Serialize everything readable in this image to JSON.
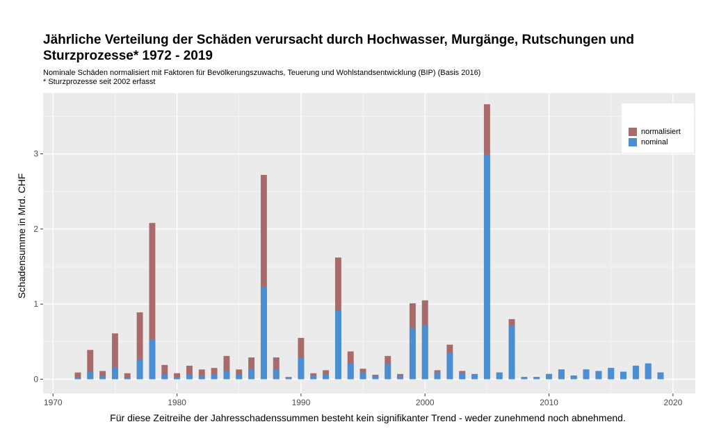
{
  "chart_data": {
    "type": "bar",
    "title": "Jährliche Verteilung der Schäden verursacht durch Hochwasser, Murgänge, Rutschungen und Sturzprozesse* 1972 - 2019",
    "subtitle_lines": [
      "Nominale Schäden normalisiert mit Faktoren für Bevölkerungszuwachs, Teuerung und Wohlstandsentwicklung (BIP) (Basis 2016)",
      "* Sturzprozesse seit 2002 erfasst"
    ],
    "xlabel": "Für diese Zeitreihe der Jahresschadenssummen besteht kein signifikanter Trend - weder zunehmend noch abnehmend.",
    "ylabel": "Schadensumme in Mrd. CHF",
    "xlim": [
      1969.2,
      2021.8
    ],
    "ylim": [
      -0.19,
      3.81
    ],
    "x_ticks": [
      1970,
      1980,
      1990,
      2000,
      2010,
      2020
    ],
    "y_ticks": [
      0,
      1,
      2,
      3
    ],
    "grid": true,
    "legend_position": "top-right",
    "x": [
      1972,
      1973,
      1974,
      1975,
      1976,
      1977,
      1978,
      1979,
      1980,
      1981,
      1982,
      1983,
      1984,
      1985,
      1986,
      1987,
      1988,
      1989,
      1990,
      1991,
      1992,
      1993,
      1994,
      1995,
      1996,
      1997,
      1998,
      1999,
      2000,
      2001,
      2002,
      2003,
      2004,
      2005,
      2006,
      2007,
      2008,
      2009,
      2010,
      2011,
      2012,
      2013,
      2014,
      2015,
      2016,
      2017,
      2018,
      2019
    ],
    "series": [
      {
        "name": "normalisiert",
        "color": "#A86B69",
        "values": [
          0.09,
          0.39,
          0.11,
          0.61,
          0.08,
          0.89,
          2.08,
          0.19,
          0.08,
          0.18,
          0.13,
          0.15,
          0.31,
          0.13,
          0.29,
          2.72,
          0.29,
          0.03,
          0.55,
          0.08,
          0.12,
          1.62,
          0.37,
          0.14,
          0.06,
          0.31,
          0.07,
          1.01,
          1.05,
          0.12,
          0.46,
          0.11,
          0.07,
          3.66,
          0.09,
          0.8,
          0.03,
          0.03,
          0.07,
          0.13,
          0.05,
          0.13,
          0.11,
          0.15,
          0.1,
          0.18,
          0.21,
          0.09
        ]
      },
      {
        "name": "nominal",
        "color": "#4A8FD4",
        "values": [
          0.02,
          0.1,
          0.04,
          0.16,
          0.02,
          0.26,
          0.53,
          0.06,
          0.03,
          0.06,
          0.05,
          0.06,
          0.11,
          0.06,
          0.13,
          1.23,
          0.13,
          0.02,
          0.29,
          0.05,
          0.06,
          0.92,
          0.21,
          0.09,
          0.04,
          0.2,
          0.05,
          0.68,
          0.72,
          0.09,
          0.35,
          0.08,
          0.06,
          2.99,
          0.09,
          0.71,
          0.03,
          0.03,
          0.07,
          0.13,
          0.05,
          0.13,
          0.11,
          0.15,
          0.1,
          0.18,
          0.21,
          0.09
        ]
      }
    ]
  }
}
